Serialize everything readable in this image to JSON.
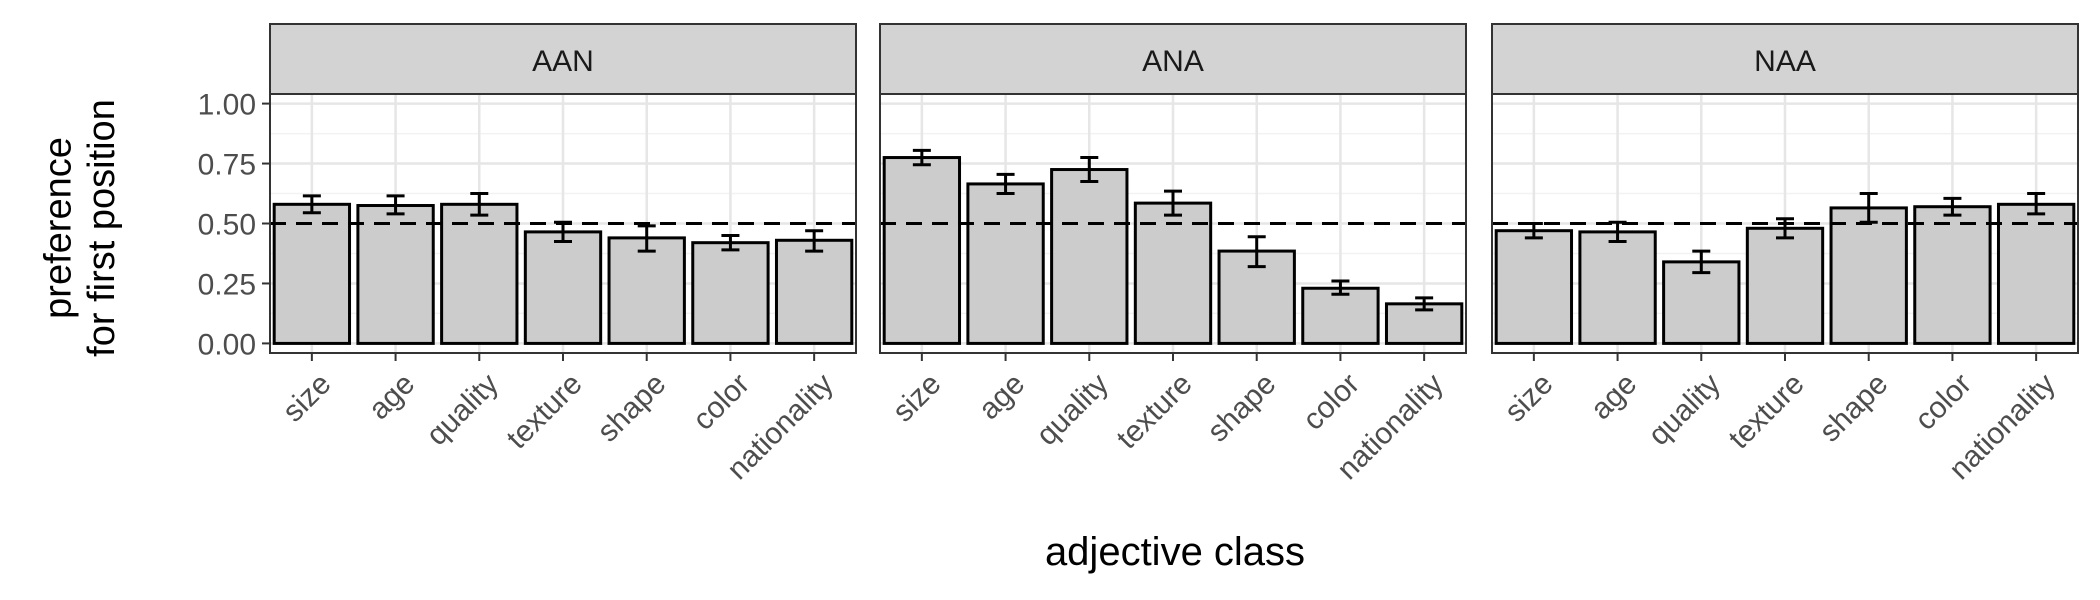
{
  "chart_data": {
    "type": "bar",
    "xlabel": "adjective class",
    "ylabel_lines": [
      "preference",
      "for first position"
    ],
    "ylim": [
      -0.04,
      1.04
    ],
    "yticks": [
      0.0,
      0.25,
      0.5,
      0.75,
      1.0
    ],
    "ytick_labels": [
      "0.00",
      "0.25",
      "0.50",
      "0.75",
      "1.00"
    ],
    "reference_line": 0.5,
    "grid": true,
    "legend": "none",
    "categories": [
      "size",
      "age",
      "quality",
      "texture",
      "shape",
      "color",
      "nationality"
    ],
    "colors": {
      "bar_fill": "#cccccc",
      "bar_stroke": "#000000",
      "strip_fill": "#d3d3d3",
      "grid_major": "#e6e6e6",
      "grid_minor": "#f2f2f2",
      "panel_border": "#333333"
    },
    "panels": [
      {
        "name": "AAN",
        "values": [
          0.58,
          0.575,
          0.58,
          0.465,
          0.44,
          0.42,
          0.43
        ],
        "err_low": [
          0.545,
          0.54,
          0.535,
          0.425,
          0.385,
          0.39,
          0.385
        ],
        "err_high": [
          0.615,
          0.615,
          0.625,
          0.505,
          0.49,
          0.45,
          0.47
        ]
      },
      {
        "name": "ANA",
        "values": [
          0.775,
          0.665,
          0.725,
          0.585,
          0.385,
          0.23,
          0.165
        ],
        "err_low": [
          0.745,
          0.625,
          0.675,
          0.535,
          0.32,
          0.205,
          0.14
        ],
        "err_high": [
          0.805,
          0.705,
          0.775,
          0.635,
          0.445,
          0.26,
          0.19
        ]
      },
      {
        "name": "NAA",
        "values": [
          0.47,
          0.465,
          0.34,
          0.48,
          0.565,
          0.57,
          0.58
        ],
        "err_low": [
          0.44,
          0.425,
          0.295,
          0.44,
          0.505,
          0.535,
          0.54
        ],
        "err_high": [
          0.5,
          0.505,
          0.385,
          0.52,
          0.625,
          0.605,
          0.625
        ]
      }
    ]
  }
}
